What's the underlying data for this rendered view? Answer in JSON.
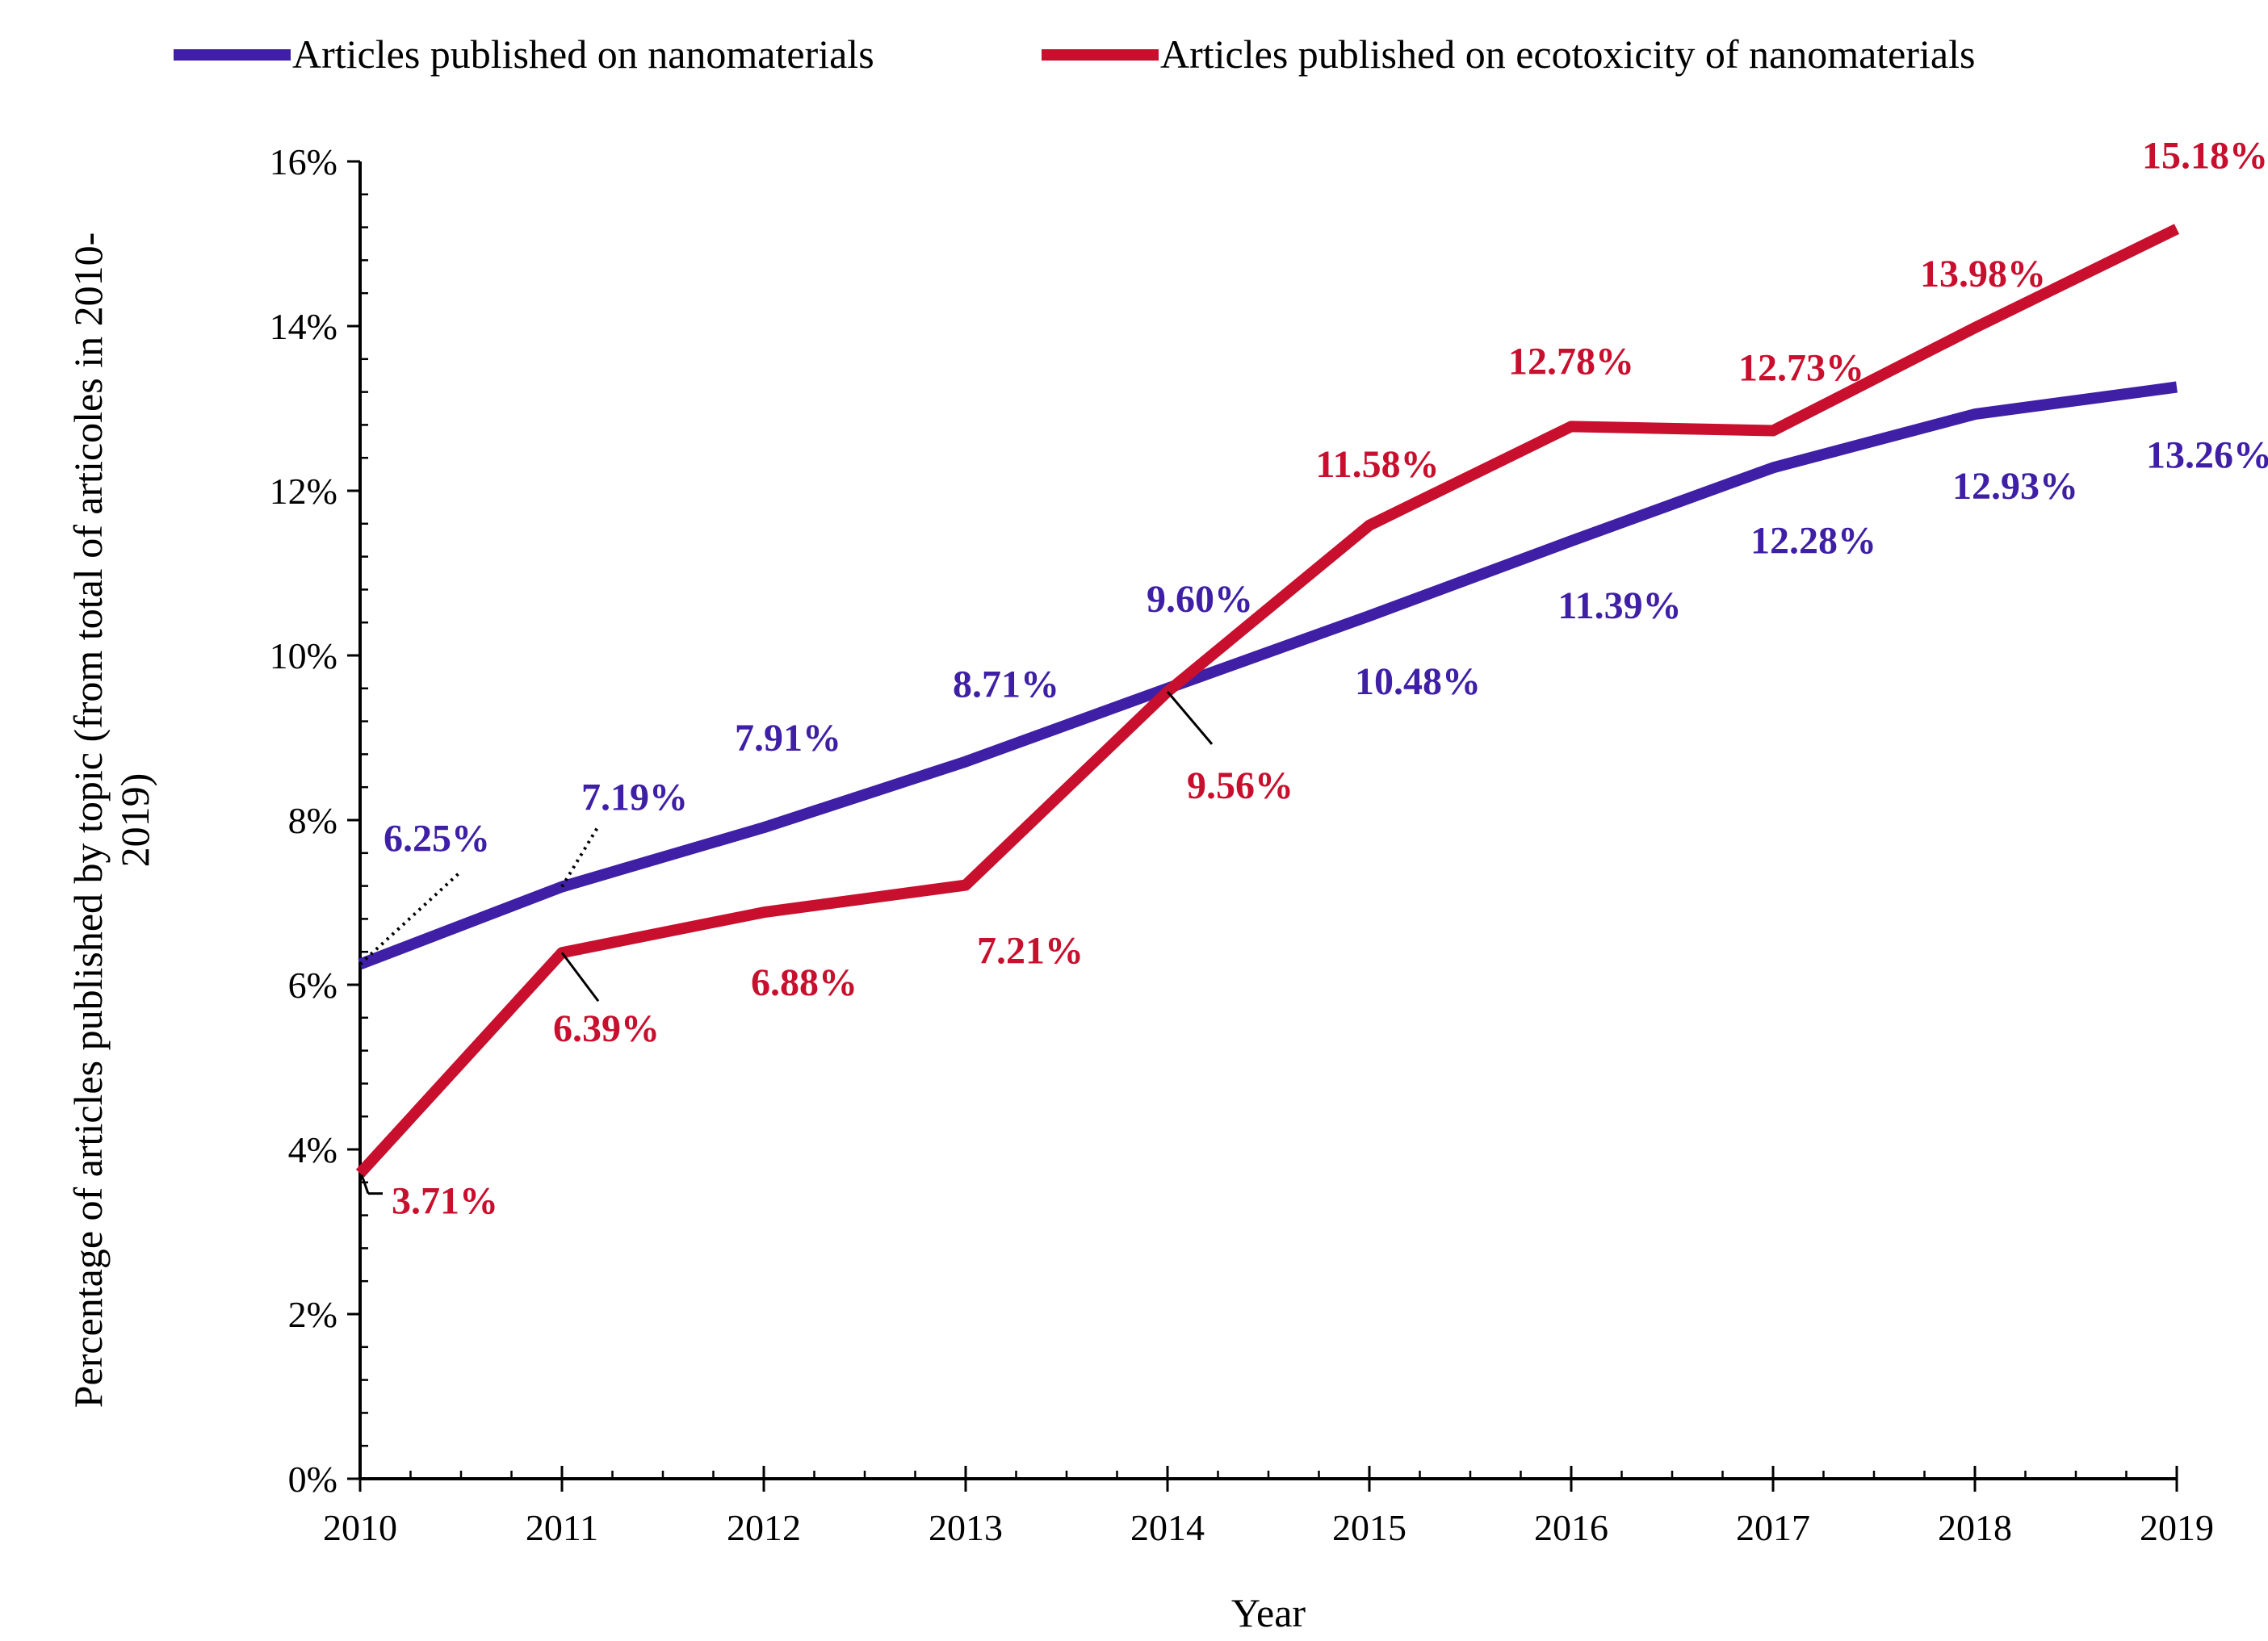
{
  "chart_data": {
    "type": "line",
    "title": "",
    "xlabel": "Year",
    "ylabel_line1": "Percentage of articles  published by topic (from total of articoles in 2010-",
    "ylabel_line2": "2019)",
    "categories": [
      "2010",
      "2011",
      "2012",
      "2013",
      "2014",
      "2015",
      "2016",
      "2017",
      "2018",
      "2019"
    ],
    "ylim": [
      0,
      16
    ],
    "y_ticks": [
      0,
      2,
      4,
      6,
      8,
      10,
      12,
      14,
      16
    ],
    "y_tick_labels": [
      "0%",
      "2%",
      "4%",
      "6%",
      "8%",
      "10%",
      "12%",
      "14%",
      "16%"
    ],
    "legend_position": "top",
    "series": [
      {
        "name": "Articles published on nanomaterials",
        "color": "#3E1FA6",
        "values": [
          6.25,
          7.19,
          7.91,
          8.71,
          9.6,
          10.48,
          11.39,
          12.28,
          12.93,
          13.26
        ],
        "labels": [
          "6.25%",
          "7.19%",
          "7.91%",
          "8.71%",
          "9.60%",
          "10.48%",
          "11.39%",
          "12.28%",
          "12.93%",
          "13.26%"
        ]
      },
      {
        "name": "Articles published on ecotoxicity of nanomaterials",
        "color": "#C8102E",
        "values": [
          3.71,
          6.39,
          6.88,
          7.21,
          9.56,
          11.58,
          12.78,
          12.73,
          13.98,
          15.18
        ],
        "labels": [
          "3.71%",
          "6.39%",
          "6.88%",
          "7.21%",
          "9.56%",
          "11.58%",
          "12.78%",
          "12.73%",
          "13.98%",
          "15.18%"
        ]
      }
    ]
  }
}
